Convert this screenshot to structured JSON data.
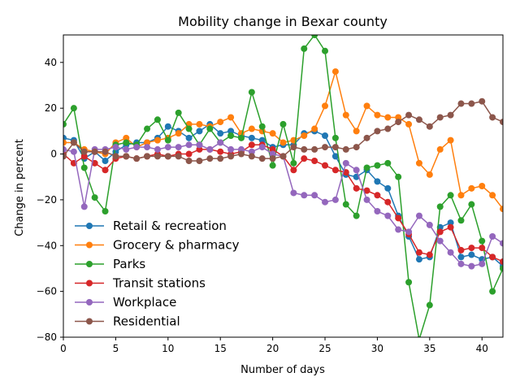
{
  "chart_data": {
    "type": "line",
    "title": "Mobility change in Bexar county",
    "xlabel": "Number of days",
    "ylabel": "Change in percent",
    "xlim": [
      0,
      42
    ],
    "ylim": [
      -80,
      52
    ],
    "xticks": [
      0,
      5,
      10,
      15,
      20,
      25,
      30,
      35,
      40
    ],
    "yticks": [
      -80,
      -60,
      -40,
      -20,
      0,
      20,
      40
    ],
    "grid": false,
    "legend_position": "lower-left",
    "x": [
      0,
      1,
      2,
      3,
      4,
      5,
      6,
      7,
      8,
      9,
      10,
      11,
      12,
      13,
      14,
      15,
      16,
      17,
      18,
      19,
      20,
      21,
      22,
      23,
      24,
      25,
      26,
      27,
      28,
      29,
      30,
      31,
      32,
      33,
      34,
      35,
      36,
      37,
      38,
      39,
      40,
      41,
      42
    ],
    "series": [
      {
        "name": "Retail & recreation",
        "color": "#1f77b4",
        "values": [
          7,
          6,
          -2,
          1,
          -3,
          1,
          4,
          5,
          5,
          7,
          12,
          10,
          7,
          10,
          13,
          9,
          10,
          8,
          7,
          6,
          3,
          4,
          4,
          9,
          10,
          8,
          -1,
          -9,
          -10,
          -7,
          -12,
          -15,
          -27,
          -36,
          -46,
          -45,
          -32,
          -30,
          -45,
          -44,
          -46,
          -45,
          -49
        ]
      },
      {
        "name": "Grocery & pharmacy",
        "color": "#ff7f0e",
        "values": [
          5,
          5,
          2,
          1,
          0,
          5,
          7,
          3,
          5,
          6,
          7,
          9,
          13,
          13,
          12,
          14,
          16,
          9,
          11,
          10,
          9,
          5,
          6,
          8,
          11,
          21,
          36,
          17,
          10,
          21,
          17,
          16,
          16,
          13,
          -4,
          -9,
          2,
          6,
          -18,
          -15,
          -14,
          -18,
          -24
        ]
      },
      {
        "name": "Parks",
        "color": "#2ca02c",
        "values": [
          13,
          20,
          -6,
          -19,
          -25,
          4,
          5,
          4,
          11,
          15,
          6,
          18,
          11,
          4,
          11,
          5,
          8,
          7,
          27,
          12,
          -5,
          13,
          -4,
          46,
          52,
          45,
          7,
          -22,
          -27,
          -6,
          -5,
          -4,
          -10,
          -56,
          -81,
          -66,
          -23,
          -18,
          -29,
          -22,
          -38,
          -60,
          -50
        ]
      },
      {
        "name": "Transit stations",
        "color": "#d62728",
        "values": [
          0,
          -4,
          -1,
          -4,
          -7,
          -2,
          -1,
          -2,
          -1,
          0,
          -1,
          0,
          0,
          2,
          2,
          1,
          0,
          1,
          4,
          4,
          2,
          -1,
          -7,
          -2,
          -3,
          -5,
          -7,
          -8,
          -15,
          -16,
          -18,
          -21,
          -28,
          -35,
          -43,
          -44,
          -34,
          -32,
          -42,
          -41,
          -41,
          -45,
          -47
        ]
      },
      {
        "name": "Workplace",
        "color": "#9467bd",
        "values": [
          2,
          1,
          -23,
          2,
          2,
          3,
          2,
          3,
          3,
          2,
          3,
          3,
          4,
          4,
          2,
          5,
          2,
          2,
          1,
          3,
          0,
          -1,
          -17,
          -18,
          -18,
          -21,
          -20,
          -4,
          -7,
          -20,
          -25,
          -27,
          -33,
          -34,
          -27,
          -31,
          -38,
          -43,
          -48,
          -49,
          -48,
          -36,
          -39
        ]
      },
      {
        "name": "Residential",
        "color": "#8c564b",
        "values": [
          -1,
          5,
          1,
          1,
          1,
          -1,
          -1,
          -2,
          -1,
          -1,
          -1,
          -1,
          -3,
          -3,
          -2,
          -2,
          -1,
          0,
          -1,
          -2,
          -2,
          -1,
          3,
          2,
          2,
          3,
          3,
          2,
          3,
          7,
          10,
          11,
          14,
          17,
          15,
          12,
          16,
          17,
          22,
          22,
          23,
          16,
          14
        ]
      }
    ]
  }
}
